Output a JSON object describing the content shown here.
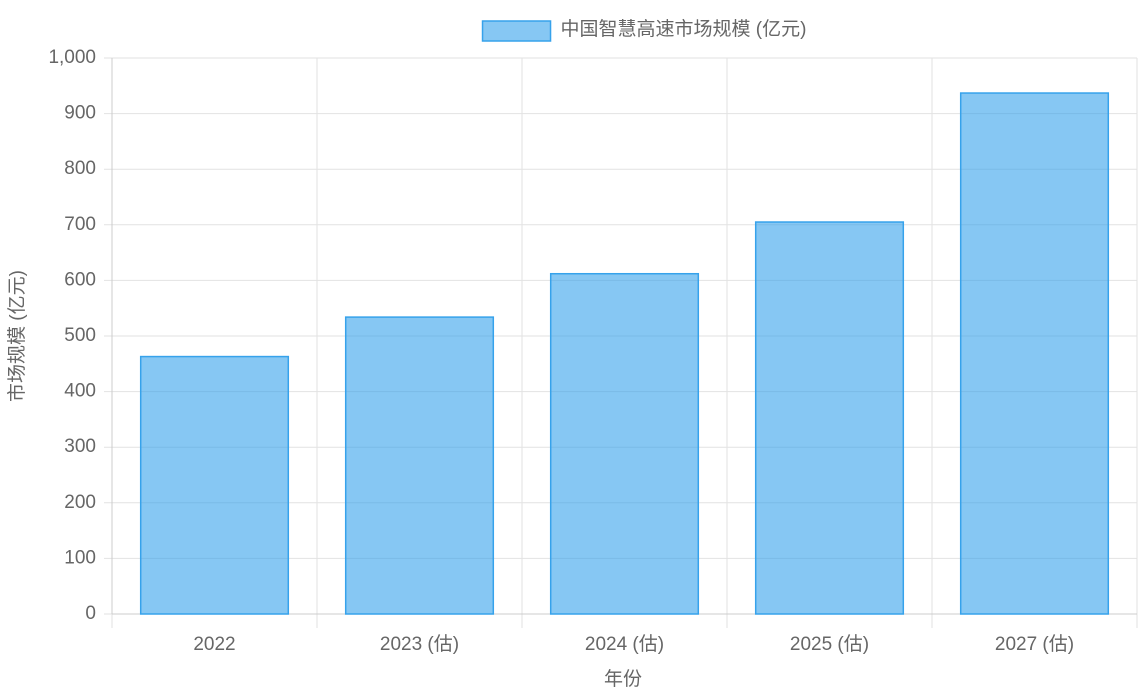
{
  "chart_data": {
    "type": "bar",
    "x_label": "年份",
    "y_label": "市场规模 (亿元)",
    "categories": [
      "2022",
      "2023 (估)",
      "2024 (估)",
      "2025 (估)",
      "2027 (估)"
    ],
    "series": [
      {
        "name": "中国智慧高速市场规模 (亿元)",
        "color": "#36a2eb",
        "values": [
          463,
          534,
          612,
          705,
          937
        ]
      }
    ],
    "ylim": [
      0,
      1000
    ],
    "yticks": [
      0,
      100,
      200,
      300,
      400,
      500,
      600,
      700,
      800,
      900,
      {
        "value": 1000,
        "label": "1,000"
      }
    ],
    "grid": true,
    "legend": "top"
  }
}
